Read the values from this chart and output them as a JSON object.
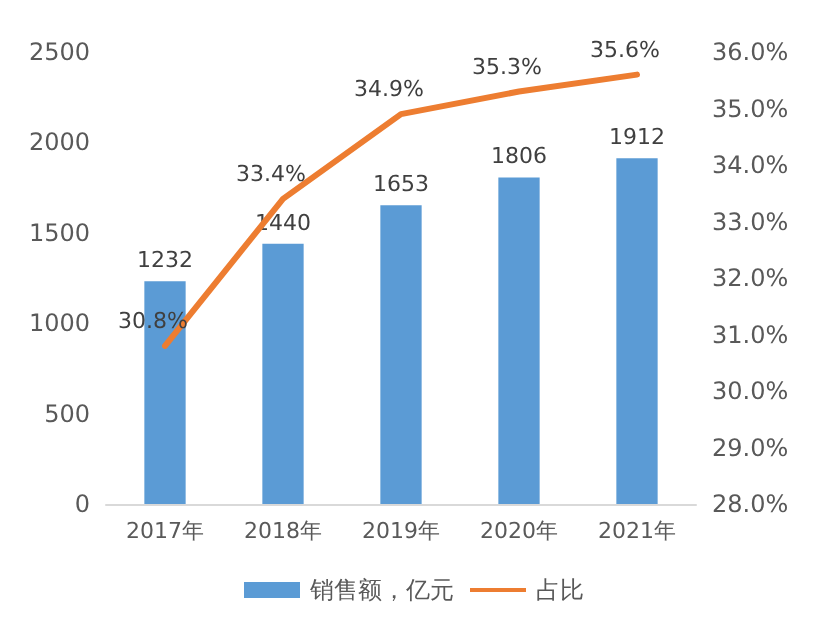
{
  "chart_data": {
    "type": "bar",
    "categories": [
      "2017年",
      "2018年",
      "2019年",
      "2020年",
      "2021年"
    ],
    "series": [
      {
        "name": "销售额，亿元",
        "color": "#5b9bd5",
        "values": [
          1232,
          1440,
          1653,
          1806,
          1912
        ],
        "value_labels": [
          "1232",
          "1440",
          "1653",
          "1806",
          "1912"
        ]
      },
      {
        "name": "占比",
        "type": "line",
        "axis": "y2",
        "color": "#ed7d31",
        "values": [
          30.8,
          33.4,
          34.9,
          35.3,
          35.6
        ],
        "value_labels": [
          "30.8%",
          "33.4%",
          "34.9%",
          "35.3%",
          "35.6%"
        ]
      }
    ],
    "ylim": [
      0,
      2500
    ],
    "yticks": [
      0,
      500,
      1000,
      1500,
      2000,
      2500
    ],
    "y2lim": [
      28,
      36
    ],
    "y2ticks": [
      {
        "value": 28,
        "label": "28.0%"
      },
      {
        "value": 29,
        "label": "29.0%"
      },
      {
        "value": 30,
        "label": "30.0%"
      },
      {
        "value": 31,
        "label": "31.0%"
      },
      {
        "value": 32,
        "label": "32.0%"
      },
      {
        "value": 33,
        "label": "33.0%"
      },
      {
        "value": 34,
        "label": "34.0%"
      },
      {
        "value": 35,
        "label": "35.0%"
      },
      {
        "value": 36,
        "label": "36.0%"
      }
    ],
    "grid": false,
    "legend": "bottom",
    "marker": "none",
    "line_style": "solid"
  }
}
